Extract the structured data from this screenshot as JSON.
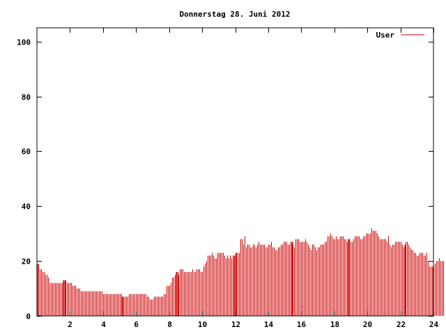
{
  "chart_data": {
    "type": "bar",
    "title": "Donnerstag 28. Juni 2012",
    "xlabel": "",
    "ylabel": "",
    "xlim": [
      0,
      24
    ],
    "ylim": [
      0,
      105
    ],
    "x_ticks": [
      2,
      4,
      6,
      8,
      10,
      12,
      14,
      16,
      18,
      20,
      22,
      24
    ],
    "x_tick_labels": [
      "2",
      "4",
      "6",
      "8",
      "10",
      "12",
      "14",
      "16",
      "18",
      "20",
      "22",
      "24"
    ],
    "y_ticks": [
      0,
      20,
      40,
      60,
      80,
      100
    ],
    "y_tick_labels": [
      "0",
      "20",
      "40",
      "60",
      "80",
      "100"
    ],
    "grid": false,
    "legend_position": "top-right",
    "series": [
      {
        "name": "User",
        "color": "#cc0000",
        "interval_minutes": 5,
        "values": [
          19,
          19,
          17,
          17,
          16,
          16,
          15,
          15,
          14,
          12,
          12,
          12,
          12,
          12,
          12,
          12,
          12,
          12,
          12,
          13,
          13,
          13,
          12,
          12,
          12,
          12,
          11,
          11,
          11,
          10,
          10,
          10,
          9,
          9,
          9,
          9,
          9,
          9,
          9,
          9,
          9,
          9,
          9,
          9,
          9,
          9,
          9,
          9,
          8,
          8,
          8,
          8,
          8,
          8,
          8,
          8,
          8,
          8,
          8,
          8,
          8,
          8,
          7,
          7,
          7,
          7,
          7,
          8,
          8,
          8,
          8,
          8,
          8,
          8,
          8,
          8,
          8,
          8,
          8,
          8,
          7,
          7,
          6,
          6,
          6,
          7,
          7,
          7,
          7,
          7,
          7,
          7,
          8,
          8,
          11,
          11,
          11,
          12,
          14,
          14,
          15,
          16,
          16,
          15,
          17,
          17,
          17,
          16,
          16,
          16,
          16,
          16,
          16,
          17,
          16,
          16,
          17,
          17,
          17,
          16,
          16,
          18,
          19,
          20,
          22,
          22,
          22,
          23,
          22,
          21,
          21,
          23,
          23,
          23,
          23,
          23,
          22,
          21,
          22,
          21,
          22,
          21,
          22,
          22,
          23,
          23,
          23,
          23,
          28,
          28,
          26,
          29,
          25,
          26,
          26,
          25,
          25,
          26,
          26,
          25,
          26,
          27,
          26,
          26,
          26,
          26,
          25,
          25,
          26,
          26,
          27,
          25,
          25,
          24,
          24,
          25,
          25,
          26,
          26,
          27,
          27,
          27,
          26,
          26,
          27,
          27,
          26,
          25,
          28,
          28,
          28,
          27,
          27,
          27,
          27,
          28,
          27,
          26,
          25,
          24,
          26,
          26,
          25,
          24,
          25,
          25,
          26,
          26,
          26,
          27,
          27,
          29,
          29,
          30,
          29,
          28,
          28,
          29,
          28,
          28,
          29,
          29,
          29,
          28,
          28,
          27,
          28,
          28,
          27,
          27,
          28,
          29,
          29,
          29,
          29,
          28,
          28,
          29,
          29,
          30,
          30,
          30,
          30,
          32,
          31,
          31,
          31,
          30,
          29,
          28,
          28,
          28,
          28,
          28,
          27,
          29,
          26,
          25,
          26,
          26,
          27,
          27,
          27,
          27,
          27,
          26,
          25,
          26,
          27,
          27,
          26,
          25,
          24,
          24,
          23,
          23,
          22,
          22,
          23,
          23,
          23,
          22,
          22,
          23,
          20,
          18,
          18,
          18,
          18,
          19,
          20,
          20,
          21,
          20,
          20,
          20
        ]
      }
    ],
    "highlight_indices": [
      0,
      19,
      62,
      101,
      143,
      185,
      226,
      267
    ]
  }
}
